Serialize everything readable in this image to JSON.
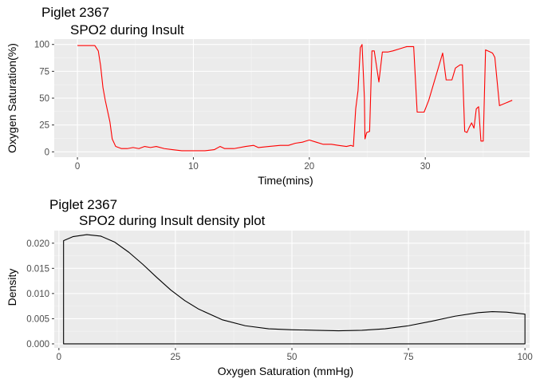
{
  "chart_data": [
    {
      "type": "line",
      "title": "Piglet 2367",
      "subtitle": "SPO2 during Insult",
      "xlabel": "Time(mins)",
      "ylabel": "Oxygen Saturation(%)",
      "xlim": [
        -2,
        39
      ],
      "ylim": [
        -5,
        105
      ],
      "xticks": [
        0,
        10,
        20,
        30
      ],
      "yticks": [
        0,
        25,
        50,
        75,
        100
      ],
      "grid": true,
      "line_color": "#ff0000",
      "series": [
        {
          "x": [
            0,
            1.5,
            1.8,
            2.0,
            2.1,
            2.2,
            2.4,
            2.6,
            2.8,
            3.0,
            3.3,
            3.8,
            4.3,
            4.8,
            5.3,
            5.8,
            6.3,
            6.8,
            7.5,
            8.2,
            9,
            10,
            11,
            11.8,
            12.3,
            12.7,
            13.5,
            14.5,
            15.2,
            15.6,
            16.5,
            17.5,
            18.2,
            18.8,
            19.4,
            20.0,
            20.6,
            21.2,
            21.9,
            22.5,
            23.2,
            23.6,
            23.8,
            24.0,
            24.2,
            24.4,
            24.55,
            24.75,
            24.8,
            24.95,
            25.2,
            25.4,
            25.6,
            26.0,
            26.3,
            26.6,
            26.8,
            27.2,
            27.8,
            28.4,
            29.0,
            29.3,
            29.9,
            30.3,
            31.5,
            31.8,
            32.0,
            32.3,
            32.6,
            33.0,
            33.2,
            33.4,
            33.6,
            33.8,
            34.0,
            34.2,
            34.4,
            34.6,
            34.8,
            35.0,
            35.2,
            35.6,
            35.8,
            36.0,
            36.4,
            37.5
          ],
          "y": [
            99,
            99,
            94,
            80,
            70,
            60,
            48,
            38,
            28,
            12,
            5,
            3,
            3,
            4,
            3,
            5,
            4,
            5,
            3,
            2,
            1,
            1,
            1,
            2,
            5,
            3,
            3,
            5,
            6,
            4,
            5,
            6,
            6,
            8,
            9,
            11,
            9,
            7,
            7,
            6,
            5,
            6,
            5,
            40,
            57,
            97,
            100,
            50,
            12,
            18,
            19,
            94,
            94,
            65,
            93,
            93,
            93,
            94,
            96,
            98,
            98,
            37,
            37,
            48,
            92,
            67,
            67,
            67,
            78,
            81,
            81,
            19,
            18,
            23,
            27,
            22,
            40,
            42,
            10,
            10,
            95,
            93,
            92,
            88,
            43,
            48
          ]
        }
      ]
    },
    {
      "type": "area",
      "title": "Piglet 2367",
      "subtitle": "SPO2 during Insult density plot",
      "xlabel": "Oxygen Saturation (mmHg)",
      "ylabel": "Density",
      "xlim": [
        -1,
        101
      ],
      "ylim": [
        -0.0008,
        0.0225
      ],
      "xticks": [
        0,
        25,
        50,
        75,
        100
      ],
      "yticks": [
        0.0,
        0.005,
        0.01,
        0.015,
        0.02
      ],
      "ytick_labels": [
        "0.000",
        "0.005",
        "0.010",
        "0.015",
        "0.020"
      ],
      "grid": true,
      "line_color": "#000000",
      "series": [
        {
          "x": [
            1,
            3,
            6,
            9,
            12,
            15,
            18,
            21,
            24,
            27,
            30,
            35,
            40,
            45,
            50,
            55,
            60,
            65,
            70,
            75,
            80,
            85,
            90,
            93,
            96,
            98,
            100
          ],
          "y": [
            0.0205,
            0.0213,
            0.0217,
            0.0214,
            0.0202,
            0.0182,
            0.0158,
            0.0132,
            0.0107,
            0.0086,
            0.0069,
            0.0048,
            0.0036,
            0.003,
            0.0028,
            0.0027,
            0.0026,
            0.0027,
            0.003,
            0.0036,
            0.0045,
            0.0055,
            0.0062,
            0.0064,
            0.0063,
            0.0061,
            0.0059
          ]
        }
      ]
    }
  ]
}
